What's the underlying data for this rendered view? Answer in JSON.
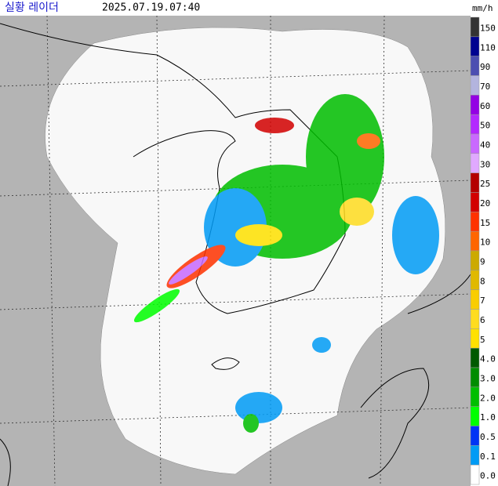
{
  "header": {
    "title": "실황 레이더",
    "timestamp": "2025.07.19.07:40",
    "unit": "mm/h"
  },
  "legend": [
    {
      "label": "150",
      "color": "#333333"
    },
    {
      "label": "110",
      "color": "#000390"
    },
    {
      "label": "90",
      "color": "#4c4eb1"
    },
    {
      "label": "70",
      "color": "#b3b4de"
    },
    {
      "label": "60",
      "color": "#9300e4"
    },
    {
      "label": "50",
      "color": "#b329ff"
    },
    {
      "label": "40",
      "color": "#c969ff"
    },
    {
      "label": "30",
      "color": "#e0a9ff"
    },
    {
      "label": "25",
      "color": "#b40000"
    },
    {
      "label": "20",
      "color": "#d20000"
    },
    {
      "label": "15",
      "color": "#ff3200"
    },
    {
      "label": "10",
      "color": "#ff6600"
    },
    {
      "label": "9",
      "color": "#ccaa00"
    },
    {
      "label": "8",
      "color": "#e0b900"
    },
    {
      "label": "7",
      "color": "#f9cd00"
    },
    {
      "label": "6",
      "color": "#ffdc1f"
    },
    {
      "label": "5",
      "color": "#ffe100"
    },
    {
      "label": "4.0",
      "color": "#005a00"
    },
    {
      "label": "3.0",
      "color": "#008c00"
    },
    {
      "label": "2.0",
      "color": "#00be00"
    },
    {
      "label": "1.0",
      "color": "#00ff00"
    },
    {
      "label": "0.5",
      "color": "#0033f5"
    },
    {
      "label": "0.1",
      "color": "#009bf5"
    },
    {
      "label": "0.0",
      "color": "#ffffff"
    }
  ]
}
